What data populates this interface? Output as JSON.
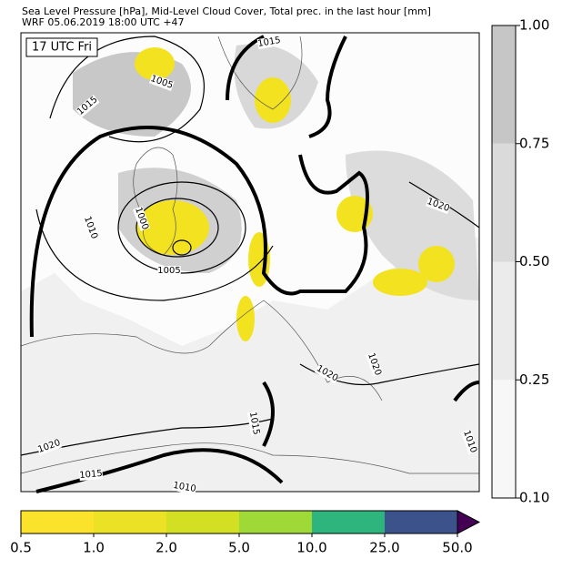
{
  "header": {
    "title_lines": [
      "Sea Level Pressure [hPa], Mid-Level Cloud Cover, Total prec. in the last hour [mm]",
      "WRF 05.06.2019 18:00 UTC +47"
    ]
  },
  "map": {
    "time_label": "17 UTC Fri",
    "isobar_labels": [
      "1015",
      "1005",
      "1015",
      "1010",
      "1000",
      "1005",
      "1020",
      "1020",
      "1020",
      "1015",
      "1020",
      "1015",
      "1010",
      "1010"
    ]
  },
  "cloud_colorbar": {
    "ticks": [
      {
        "value": 0.1,
        "label": "0.10"
      },
      {
        "value": 0.25,
        "label": "0.25"
      },
      {
        "value": 0.5,
        "label": "0.50"
      },
      {
        "value": 0.75,
        "label": "0.75"
      },
      {
        "value": 1,
        "label": "1.00"
      }
    ],
    "colors": [
      "#f7f7f7",
      "#ebebeb",
      "#dadada",
      "#c6c6c6"
    ]
  },
  "precip_colorbar": {
    "ticks": [
      0.5,
      {
        "value": 1,
        "label": "1.0"
      },
      {
        "value": 2,
        "label": "2.0"
      },
      {
        "value": 5,
        "label": "5.0"
      },
      {
        "value": 10,
        "label": "10.0"
      },
      {
        "value": 25,
        "label": "25.0"
      },
      {
        "value": 50,
        "label": "50.0"
      }
    ],
    "colors": [
      "#fae32a",
      "#ebe226",
      "#d3df22",
      "#9fd938",
      "#2db57d",
      "#3b528b"
    ],
    "extend_color": "#440154"
  }
}
